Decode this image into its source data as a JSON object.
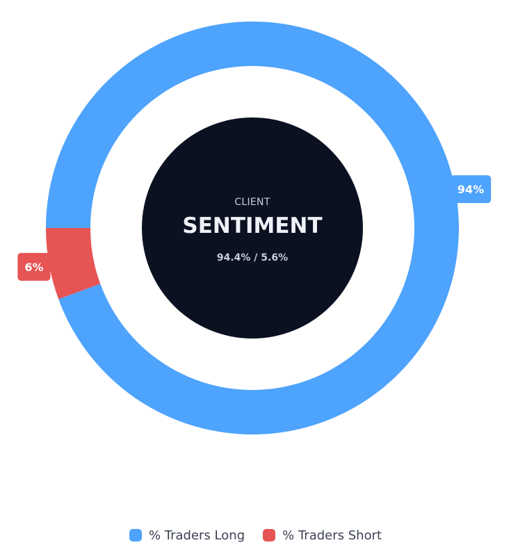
{
  "chart_data": {
    "type": "pie",
    "variant": "donut",
    "categories": [
      "% Traders Long",
      "% Traders Short"
    ],
    "values": [
      94.4,
      5.6
    ],
    "data_labels": [
      "94%",
      "6%"
    ],
    "colors": [
      "#4ea3fd",
      "#e65454"
    ],
    "title": "",
    "legend_position": "bottom",
    "center": {
      "kicker": "CLIENT",
      "title": "SENTIMENT",
      "ratio": "94.4% / 5.6%",
      "background": "#0b1120"
    }
  },
  "legend": {
    "items": [
      {
        "label": "% Traders Long",
        "color": "#4ea3fd"
      },
      {
        "label": "% Traders Short",
        "color": "#e65454"
      }
    ]
  }
}
